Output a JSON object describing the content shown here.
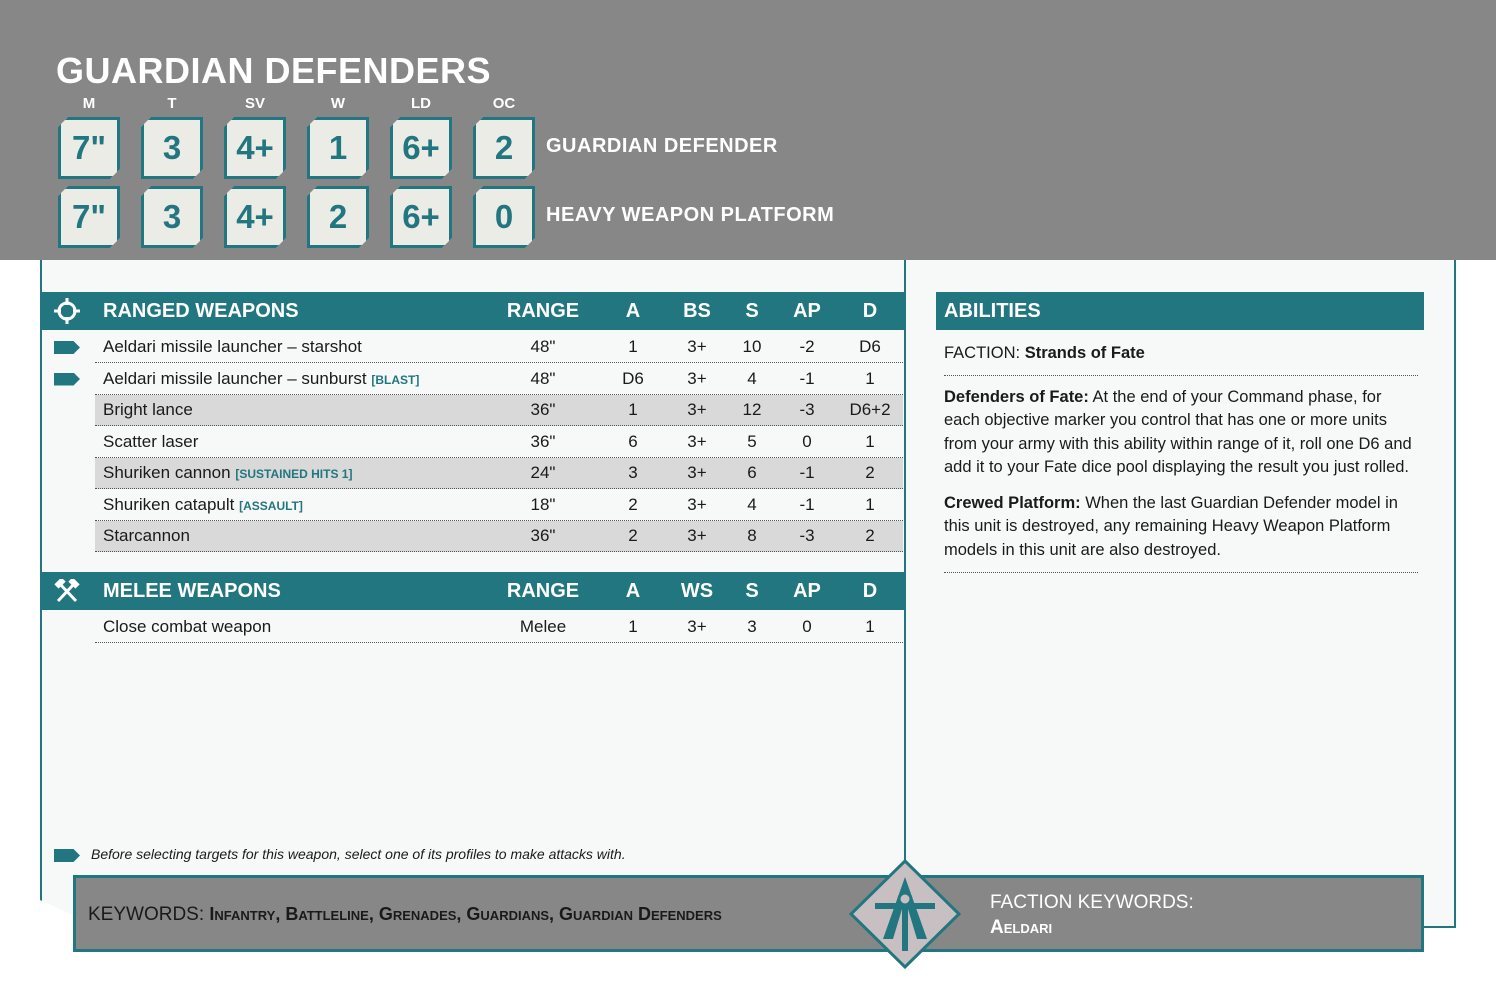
{
  "unit": {
    "name": "GUARDIAN DEFENDERS"
  },
  "stat_labels": [
    "M",
    "T",
    "SV",
    "W",
    "LD",
    "OC"
  ],
  "profiles": [
    {
      "name": "GUARDIAN DEFENDER",
      "stats": [
        "7\"",
        "3",
        "4+",
        "1",
        "6+",
        "2"
      ]
    },
    {
      "name": "HEAVY WEAPON PLATFORM",
      "stats": [
        "7\"",
        "3",
        "4+",
        "2",
        "6+",
        "0"
      ]
    }
  ],
  "ranged": {
    "title": "RANGED WEAPONS",
    "icon": "crosshair-icon",
    "headers": [
      "RANGE",
      "A",
      "BS",
      "S",
      "AP",
      "D"
    ],
    "rows": [
      {
        "name": "Aeldari missile launcher – starshot",
        "kw": "",
        "multi": true,
        "vals": [
          "48\"",
          "1",
          "3+",
          "10",
          "-2",
          "D6"
        ]
      },
      {
        "name": "Aeldari missile launcher – sunburst",
        "kw": "[BLAST]",
        "multi": true,
        "vals": [
          "48\"",
          "D6",
          "3+",
          "4",
          "-1",
          "1"
        ]
      },
      {
        "name": "Bright lance",
        "kw": "",
        "vals": [
          "36\"",
          "1",
          "3+",
          "12",
          "-3",
          "D6+2"
        ]
      },
      {
        "name": "Scatter laser",
        "kw": "",
        "vals": [
          "36\"",
          "6",
          "3+",
          "5",
          "0",
          "1"
        ]
      },
      {
        "name": "Shuriken cannon",
        "kw": "[SUSTAINED HITS 1]",
        "vals": [
          "24\"",
          "3",
          "3+",
          "6",
          "-1",
          "2"
        ]
      },
      {
        "name": "Shuriken catapult",
        "kw": "[ASSAULT]",
        "vals": [
          "18\"",
          "2",
          "3+",
          "4",
          "-1",
          "1"
        ]
      },
      {
        "name": "Starcannon",
        "kw": "",
        "vals": [
          "36\"",
          "2",
          "3+",
          "8",
          "-3",
          "2"
        ]
      }
    ]
  },
  "melee": {
    "title": "MELEE WEAPONS",
    "icon": "crossed-hammers-icon",
    "headers": [
      "RANGE",
      "A",
      "WS",
      "S",
      "AP",
      "D"
    ],
    "rows": [
      {
        "name": "Close combat weapon",
        "kw": "",
        "vals": [
          "Melee",
          "1",
          "3+",
          "3",
          "0",
          "1"
        ]
      }
    ]
  },
  "footnote": "Before selecting targets for this weapon, select one of its profiles to make attacks with.",
  "abilities": {
    "title": "ABILITIES",
    "faction_label": "FACTION:",
    "faction_value": "Strands of Fate",
    "items": [
      {
        "name": "Defenders of Fate:",
        "text": "At the end of your Command phase, for each objective marker you control that has one or more units from your army with this ability within range of it, roll one D6 and add it to your Fate dice pool displaying the result you just rolled."
      },
      {
        "name": "Crewed Platform:",
        "text": "When the last Guardian Defender model in this unit is destroyed, any remaining Heavy Weapon Platform models in this unit are also destroyed."
      }
    ]
  },
  "keywords": {
    "label": "KEYWORDS:",
    "value": "Infantry, Battleline, Grenades, Guardians, Guardian Defenders"
  },
  "faction_keywords": {
    "label": "FACTION KEYWORDS:",
    "value": "Aeldari"
  },
  "colors": {
    "teal": "#22767f",
    "gray": "#878787",
    "row_alt": "#d9d9d9"
  }
}
